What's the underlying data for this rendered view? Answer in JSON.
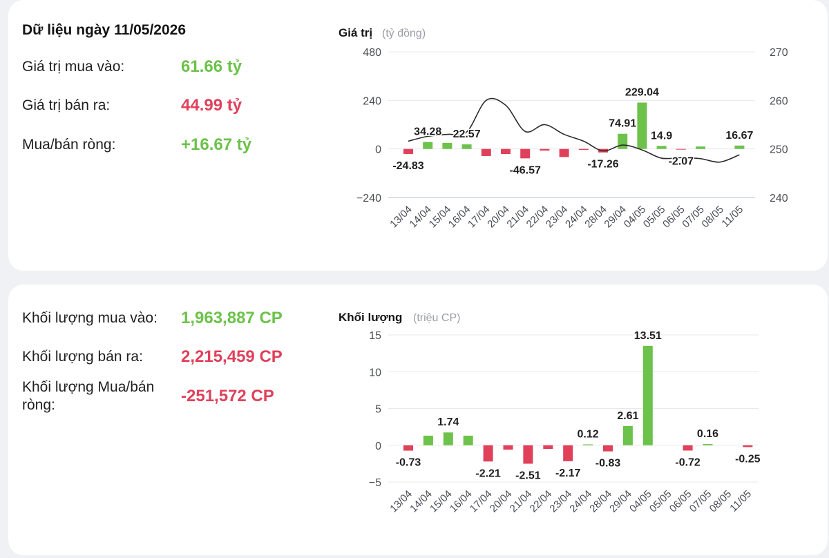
{
  "summary": {
    "heading": "Dữ liệu ngày 11/05/2026",
    "buy_value_label": "Giá trị mua vào:",
    "buy_value": "61.66 tỷ",
    "sell_value_label": "Giá trị bán ra:",
    "sell_value": "44.99 tỷ",
    "net_value_label": "Mua/bán ròng:",
    "net_value": "+16.67 tỷ",
    "buy_volume_label": "Khối lượng mua vào:",
    "buy_volume": "1,963,887 CP",
    "sell_volume_label": "Khối lượng bán ra:",
    "sell_volume": "2,215,459 CP",
    "net_volume_label_line1": "Khối lượng Mua/bán",
    "net_volume_label_line2": "ròng:",
    "net_volume": "-251,572 CP"
  },
  "colors": {
    "positive": "#6cc24a",
    "negative": "#e0405a",
    "line": "#2b2b2b",
    "grid": "#e6e8ee",
    "zero_line": "#c9d6ef"
  },
  "chart_data": [
    {
      "type": "bar",
      "title": "Giá trị",
      "subtitle": "(tỷ đồng)",
      "categories": [
        "13/04",
        "14/04",
        "15/04",
        "16/04",
        "17/04",
        "20/04",
        "21/04",
        "22/04",
        "23/04",
        "24/04",
        "28/04",
        "29/04",
        "04/05",
        "05/05",
        "06/05",
        "07/05",
        "08/05",
        "11/05"
      ],
      "series": [
        {
          "type": "bar",
          "values": [
            -24.83,
            34.28,
            30,
            22.57,
            -35,
            -25,
            -46.57,
            -8,
            -40,
            -5,
            -17.26,
            74.91,
            229.04,
            14.9,
            -2.07,
            12,
            0,
            16.67
          ]
        },
        {
          "type": "line",
          "axis": "right",
          "values": [
            251.6,
            252.6,
            253,
            253.5,
            260,
            259,
            253.6,
            255,
            253,
            251.6,
            249.6,
            250.8,
            249.8,
            248.1,
            248.2,
            248,
            247.3,
            248.8
          ]
        }
      ],
      "data_labels": [
        {
          "category": "13/04",
          "text": "-24.83"
        },
        {
          "category": "14/04",
          "text": "34.28"
        },
        {
          "category": "16/04",
          "text": "22.57"
        },
        {
          "category": "21/04",
          "text": "-46.57"
        },
        {
          "category": "28/04",
          "text": "-17.26"
        },
        {
          "category": "29/04",
          "text": "74.91"
        },
        {
          "category": "04/05",
          "text": "229.04"
        },
        {
          "category": "05/05",
          "text": "14.9"
        },
        {
          "category": "06/05",
          "text": "-2.07"
        },
        {
          "category": "11/05",
          "text": "16.67"
        }
      ],
      "y_ticks": [
        480,
        240,
        0,
        -240
      ],
      "y_tick_labels": [
        "480",
        "240",
        "0",
        "−240"
      ],
      "ylim": [
        -240,
        480
      ],
      "y2_ticks": [
        270,
        260,
        250,
        240
      ],
      "y2lim": [
        240,
        270
      ],
      "grid": true
    },
    {
      "type": "bar",
      "title": "Khối lượng",
      "subtitle": "(triệu CP)",
      "categories": [
        "13/04",
        "14/04",
        "15/04",
        "16/04",
        "17/04",
        "20/04",
        "21/04",
        "22/04",
        "23/04",
        "24/04",
        "28/04",
        "29/04",
        "04/05",
        "05/05",
        "06/05",
        "07/05",
        "08/05",
        "11/05"
      ],
      "series": [
        {
          "type": "bar",
          "values": [
            -0.73,
            1.3,
            1.74,
            1.3,
            -2.21,
            -0.6,
            -2.51,
            -0.5,
            -2.17,
            0.12,
            -0.83,
            2.61,
            13.51,
            0,
            -0.72,
            0.16,
            0,
            -0.25
          ]
        }
      ],
      "data_labels": [
        {
          "category": "13/04",
          "text": "-0.73"
        },
        {
          "category": "15/04",
          "text": "1.74"
        },
        {
          "category": "17/04",
          "text": "-2.21"
        },
        {
          "category": "21/04",
          "text": "-2.51"
        },
        {
          "category": "23/04",
          "text": "-2.17"
        },
        {
          "category": "24/04",
          "text": "0.12"
        },
        {
          "category": "28/04",
          "text": "-0.83"
        },
        {
          "category": "29/04",
          "text": "2.61"
        },
        {
          "category": "04/05",
          "text": "13.51"
        },
        {
          "category": "06/05",
          "text": "-0.72"
        },
        {
          "category": "07/05",
          "text": "0.16"
        },
        {
          "category": "11/05",
          "text": "-0.25"
        }
      ],
      "y_ticks": [
        15,
        10,
        5,
        0,
        -5
      ],
      "y_tick_labels": [
        "15",
        "10",
        "5",
        "0",
        "−5"
      ],
      "ylim": [
        -5,
        15
      ],
      "grid": true
    }
  ]
}
